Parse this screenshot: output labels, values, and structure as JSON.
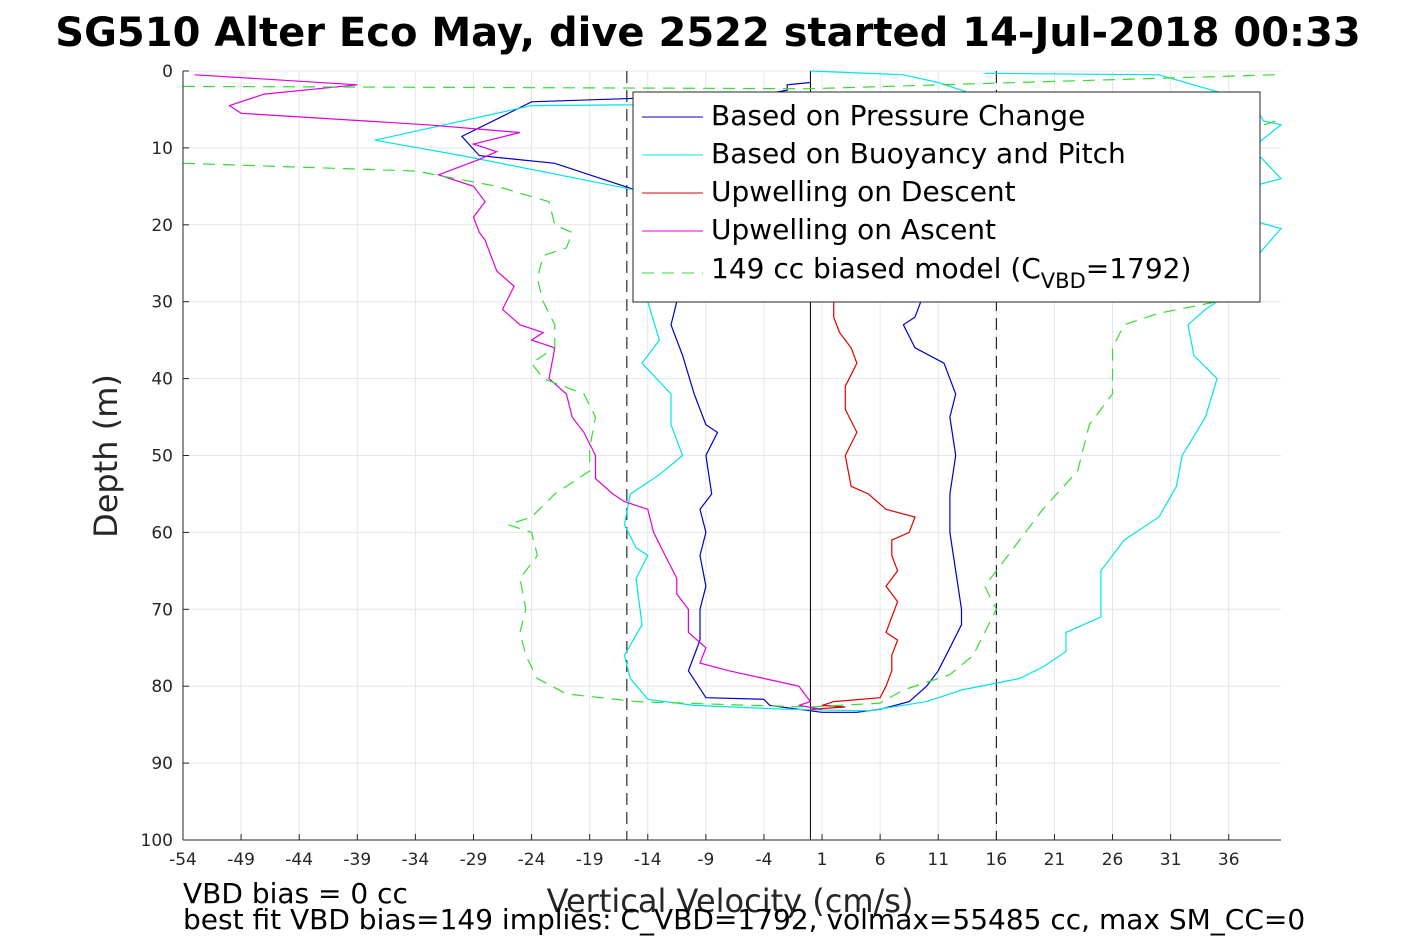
{
  "chart_data": {
    "type": "line",
    "title": "SG510 Alter Eco May, dive 2522 started 14-Jul-2018 00:33",
    "xlabel": "Vertical Velocity (cm/s)",
    "ylabel": "Depth (m)",
    "xlim": [
      -54,
      40.5
    ],
    "ylim": [
      100,
      0
    ],
    "y_reversed": true,
    "grid": true,
    "x_ticks": [
      -54,
      -49,
      -44,
      -39,
      -34,
      -29,
      -24,
      -19,
      -14,
      -9,
      -4,
      1,
      6,
      11,
      16,
      21,
      26,
      31,
      36
    ],
    "y_ticks": [
      0,
      10,
      20,
      30,
      40,
      50,
      60,
      70,
      80,
      90,
      100
    ],
    "legend_placement": "top-right",
    "legend": {
      "s1": "Based on Pressure Change",
      "s2": "Based on Buoyancy and Pitch",
      "s3": "Upwelling on Descent",
      "s4": "Upwelling on Ascent",
      "s5_prefix": "149 cc biased model (C",
      "s5_sub": "VBD",
      "s5_suffix": "=1792)"
    },
    "reference_lines": [
      {
        "x": -15.8,
        "style": "dashed",
        "color": "#000000"
      },
      {
        "x": 16.0,
        "style": "dashed",
        "color": "#000000"
      },
      {
        "x": 0.0,
        "style": "solid",
        "color": "#000000"
      }
    ],
    "series": [
      {
        "name": "Based on Pressure Change",
        "color": "#0000cc",
        "style": "solid",
        "points": [
          [
            0.0,
            1.5
          ],
          [
            -2.0,
            1.8
          ],
          [
            -2.0,
            2.5
          ],
          [
            -4.0,
            3.0
          ],
          [
            -14.0,
            3.5
          ],
          [
            -24.0,
            4.0
          ],
          [
            -30.0,
            8.5
          ],
          [
            -28.5,
            11.0
          ],
          [
            -22.0,
            12.0
          ],
          [
            -15.0,
            15.5
          ],
          [
            -11.5,
            30.0
          ],
          [
            -12.0,
            33.0
          ],
          [
            -11.0,
            37.0
          ],
          [
            -10.0,
            42.0
          ],
          [
            -9.0,
            46.0
          ],
          [
            -8.0,
            47.0
          ],
          [
            -9.0,
            50.0
          ],
          [
            -8.5,
            55.0
          ],
          [
            -9.5,
            57.0
          ],
          [
            -9.0,
            60.0
          ],
          [
            -9.5,
            63.0
          ],
          [
            -9.0,
            67.0
          ],
          [
            -9.5,
            70.0
          ],
          [
            -9.5,
            74.0
          ],
          [
            -10.5,
            78.0
          ],
          [
            -9.0,
            81.5
          ],
          [
            -4.0,
            81.7
          ],
          [
            -3.5,
            82.5
          ],
          [
            -1.0,
            83.0
          ],
          [
            1.0,
            83.4
          ],
          [
            4.0,
            83.4
          ],
          [
            6.0,
            83.0
          ],
          [
            8.5,
            82.0
          ],
          [
            10.0,
            80.0
          ],
          [
            11.0,
            78.0
          ],
          [
            12.0,
            75.0
          ],
          [
            13.0,
            72.0
          ],
          [
            13.0,
            70.0
          ],
          [
            12.5,
            65.0
          ],
          [
            12.0,
            60.0
          ],
          [
            12.0,
            55.0
          ],
          [
            12.5,
            50.0
          ],
          [
            12.0,
            45.0
          ],
          [
            12.5,
            42.0
          ],
          [
            11.5,
            38.0
          ],
          [
            9.0,
            36.0
          ],
          [
            8.0,
            33.0
          ],
          [
            9.0,
            32.0
          ],
          [
            9.5,
            30.0
          ]
        ]
      },
      {
        "name": "Based on Buoyancy and Pitch",
        "color": "#00e5e5",
        "style": "solid",
        "points": [
          [
            0.0,
            0.0
          ],
          [
            8.0,
            0.5
          ],
          [
            11.0,
            1.5
          ],
          [
            14.0,
            3.0
          ],
          [
            16.0,
            4.0
          ],
          [
            -24.0,
            4.5
          ],
          [
            -37.5,
            9.0
          ],
          [
            -30.0,
            11.0
          ],
          [
            -15.0,
            15.5
          ],
          [
            -14.0,
            30.0
          ],
          [
            -13.0,
            35.0
          ],
          [
            -14.5,
            38.0
          ],
          [
            -12.0,
            42.0
          ],
          [
            -12.0,
            46.0
          ],
          [
            -11.0,
            50.0
          ],
          [
            -13.0,
            52.5
          ],
          [
            -15.5,
            55.0
          ],
          [
            -16.0,
            59.0
          ],
          [
            -15.0,
            62.0
          ],
          [
            -14.0,
            63.0
          ],
          [
            -15.0,
            66.0
          ],
          [
            -14.5,
            72.0
          ],
          [
            -16.0,
            76.0
          ],
          [
            -15.5,
            79.0
          ],
          [
            -14.0,
            81.7
          ],
          [
            -10.0,
            82.5
          ],
          [
            -2.0,
            83.0
          ],
          [
            5.0,
            83.2
          ],
          [
            10.0,
            82.0
          ],
          [
            13.0,
            80.5
          ],
          [
            18.0,
            79.0
          ],
          [
            20.0,
            77.5
          ],
          [
            22.0,
            75.5
          ],
          [
            22.0,
            73.0
          ],
          [
            25.0,
            71.0
          ],
          [
            25.0,
            65.0
          ],
          [
            27.0,
            61.0
          ],
          [
            30.0,
            58.0
          ],
          [
            31.5,
            54.0
          ],
          [
            32.0,
            50.0
          ],
          [
            34.0,
            45.0
          ],
          [
            35.0,
            40.0
          ],
          [
            33.0,
            37.0
          ],
          [
            32.5,
            33.0
          ],
          [
            34.0,
            31.0
          ],
          [
            35.0,
            30.0
          ],
          [
            40.5,
            20.5
          ],
          [
            37.0,
            19.0
          ],
          [
            38.0,
            15.0
          ],
          [
            40.5,
            14.0
          ],
          [
            38.0,
            10.0
          ],
          [
            40.5,
            7.0
          ],
          [
            39.0,
            6.5
          ],
          [
            38.0,
            4.0
          ],
          [
            30.0,
            0.5
          ],
          [
            15.0,
            0.3
          ]
        ]
      },
      {
        "name": "Upwelling on Descent",
        "color": "#e00000",
        "style": "solid",
        "points": [
          [
            2.0,
            30.0
          ],
          [
            2.0,
            32.0
          ],
          [
            2.5,
            34.0
          ],
          [
            3.5,
            36.0
          ],
          [
            4.0,
            38.0
          ],
          [
            3.0,
            41.0
          ],
          [
            3.0,
            44.0
          ],
          [
            4.0,
            47.0
          ],
          [
            3.0,
            50.0
          ],
          [
            3.5,
            54.0
          ],
          [
            5.0,
            55.0
          ],
          [
            6.5,
            57.0
          ],
          [
            9.0,
            58.0
          ],
          [
            8.5,
            60.0
          ],
          [
            7.0,
            61.0
          ],
          [
            7.0,
            63.0
          ],
          [
            7.5,
            65.0
          ],
          [
            6.5,
            67.0
          ],
          [
            7.5,
            69.0
          ],
          [
            7.0,
            71.0
          ],
          [
            6.5,
            73.0
          ],
          [
            7.5,
            74.0
          ],
          [
            7.0,
            76.0
          ],
          [
            7.0,
            78.0
          ],
          [
            6.5,
            80.0
          ],
          [
            6.0,
            81.5
          ],
          [
            2.0,
            82.0
          ],
          [
            1.0,
            82.5
          ],
          [
            3.0,
            82.7
          ],
          [
            0.0,
            83.0
          ]
        ]
      },
      {
        "name": "Upwelling on Ascent",
        "color": "#e000e0",
        "style": "solid",
        "points": [
          [
            -53.0,
            0.5
          ],
          [
            -39.0,
            1.8
          ],
          [
            -47.0,
            3.0
          ],
          [
            -50.0,
            4.5
          ],
          [
            -49.0,
            5.5
          ],
          [
            -33.0,
            7.0
          ],
          [
            -25.0,
            8.0
          ],
          [
            -29.0,
            9.5
          ],
          [
            -27.0,
            10.5
          ],
          [
            -28.5,
            11.5
          ],
          [
            -32.0,
            13.5
          ],
          [
            -29.0,
            15.0
          ],
          [
            -28.0,
            17.0
          ],
          [
            -29.0,
            19.0
          ],
          [
            -28.5,
            21.0
          ],
          [
            -28.0,
            22.0
          ],
          [
            -27.5,
            24.0
          ],
          [
            -27.0,
            26.0
          ],
          [
            -25.5,
            28.0
          ],
          [
            -26.5,
            31.0
          ],
          [
            -25.0,
            33.0
          ],
          [
            -23.0,
            34.0
          ],
          [
            -24.0,
            35.0
          ],
          [
            -22.0,
            36.0
          ],
          [
            -22.5,
            40.0
          ],
          [
            -21.0,
            42.0
          ],
          [
            -20.5,
            45.0
          ],
          [
            -19.5,
            47.0
          ],
          [
            -18.5,
            50.0
          ],
          [
            -18.5,
            53.0
          ],
          [
            -17.0,
            55.0
          ],
          [
            -16.0,
            56.0
          ],
          [
            -14.0,
            57.0
          ],
          [
            -13.5,
            60.0
          ],
          [
            -12.5,
            63.0
          ],
          [
            -11.5,
            66.0
          ],
          [
            -11.5,
            68.0
          ],
          [
            -10.5,
            70.0
          ],
          [
            -10.5,
            73.0
          ],
          [
            -9.0,
            75.0
          ],
          [
            -9.5,
            77.0
          ],
          [
            -7.0,
            78.0
          ],
          [
            -4.0,
            79.0
          ],
          [
            -1.0,
            80.0
          ],
          [
            -0.5,
            81.0
          ],
          [
            0.0,
            82.0
          ],
          [
            -1.0,
            82.5
          ],
          [
            1.0,
            83.0
          ]
        ]
      },
      {
        "name": "149 cc biased model (CVBD=1792)",
        "color": "#33dd33",
        "style": "dashed",
        "points": [
          [
            -54.0,
            2.0
          ],
          [
            0.0,
            2.3
          ],
          [
            40.0,
            0.5
          ],
          null,
          [
            40.0,
            6.5
          ],
          [
            38.0,
            7.5
          ],
          [
            36.0,
            9.0
          ],
          [
            30.0,
            10.0
          ],
          null,
          [
            -54.0,
            12.0
          ],
          [
            -34.0,
            13.0
          ],
          [
            -27.0,
            15.0
          ],
          [
            -22.5,
            17.0
          ],
          [
            -22.0,
            20.0
          ],
          [
            -20.5,
            21.0
          ],
          [
            -21.0,
            23.0
          ],
          [
            -23.0,
            24.0
          ],
          [
            -23.5,
            27.0
          ],
          [
            -23.0,
            30.0
          ],
          [
            -22.0,
            33.0
          ],
          [
            -22.0,
            36.0
          ],
          [
            -24.0,
            38.0
          ],
          [
            -23.0,
            40.0
          ],
          [
            -19.5,
            42.0
          ],
          [
            -18.5,
            45.0
          ],
          [
            -19.0,
            49.0
          ],
          [
            -19.0,
            52.0
          ],
          [
            -22.0,
            55.0
          ],
          [
            -24.0,
            58.0
          ],
          [
            -26.0,
            59.0
          ],
          [
            -24.0,
            60.0
          ],
          [
            -23.5,
            63.0
          ],
          [
            -25.0,
            66.0
          ],
          [
            -24.5,
            70.0
          ],
          [
            -25.0,
            73.0
          ],
          [
            -24.5,
            76.0
          ],
          [
            -23.5,
            79.0
          ],
          [
            -21.0,
            81.0
          ],
          [
            -15.0,
            82.0
          ],
          [
            -5.0,
            82.5
          ],
          [
            0.0,
            82.7
          ],
          [
            6.0,
            82.2
          ],
          [
            8.0,
            80.5
          ],
          [
            12.0,
            78.5
          ],
          [
            14.0,
            76.0
          ],
          [
            16.0,
            70.0
          ],
          [
            15.0,
            67.0
          ],
          [
            17.0,
            63.0
          ],
          [
            20.0,
            57.0
          ],
          [
            23.0,
            52.0
          ],
          [
            24.0,
            46.0
          ],
          [
            26.0,
            42.0
          ],
          [
            26.0,
            36.0
          ],
          [
            27.0,
            33.0
          ],
          [
            30.0,
            31.5
          ],
          [
            35.0,
            30.0
          ]
        ]
      }
    ]
  },
  "footer": {
    "line1": "VBD bias = 0 cc",
    "line2": "best fit VBD bias=149 implies: C_VBD=1792, volmax=55485 cc, max SM_CC=0"
  }
}
